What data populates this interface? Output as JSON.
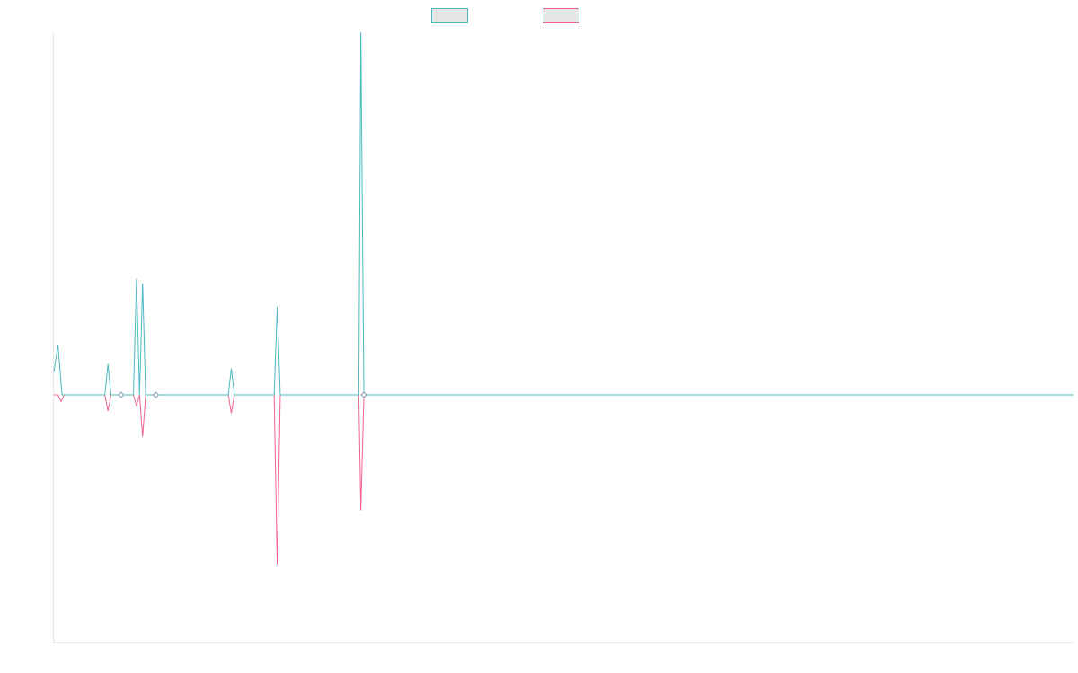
{
  "chart_data": {
    "type": "line",
    "grid": false,
    "legend_position": "top-center",
    "x_axis": {
      "range": [
        0,
        100
      ],
      "tick_labels_shown": false
    },
    "y_axis": {
      "range": [
        -1,
        1
      ],
      "tick_labels_shown": false
    },
    "series": [
      {
        "color": "#4bb8c2",
        "legend_fill": "#e6e6e6",
        "points": [
          [
            0.0,
            0.063
          ],
          [
            0.4,
            0.138
          ],
          [
            0.8,
            0.0
          ],
          [
            5.0,
            0.0
          ],
          [
            5.3,
            0.085
          ],
          [
            5.6,
            0.0
          ],
          [
            6.6,
            0.0
          ],
          [
            7.2,
            0.0
          ],
          [
            7.8,
            0.0
          ],
          [
            8.1,
            0.32
          ],
          [
            8.4,
            0.0
          ],
          [
            8.7,
            0.308
          ],
          [
            9.0,
            0.0
          ],
          [
            10.0,
            0.0
          ],
          [
            17.1,
            0.0
          ],
          [
            17.4,
            0.073
          ],
          [
            17.7,
            0.0
          ],
          [
            21.6,
            0.0
          ],
          [
            21.9,
            0.243
          ],
          [
            22.2,
            0.0
          ],
          [
            29.9,
            0.0
          ],
          [
            30.1,
            1.0
          ],
          [
            30.4,
            0.0
          ],
          [
            100.0,
            0.0
          ]
        ]
      },
      {
        "color": "#f0628c",
        "legend_fill": "#e6e6e6",
        "points": [
          [
            0.0,
            0.0
          ],
          [
            0.4,
            0.0
          ],
          [
            0.7,
            -0.027
          ],
          [
            1.0,
            0.0
          ],
          [
            5.0,
            0.0
          ],
          [
            5.3,
            -0.065
          ],
          [
            5.6,
            0.0
          ],
          [
            6.6,
            0.0
          ],
          [
            7.2,
            0.0
          ],
          [
            7.8,
            0.0
          ],
          [
            8.1,
            -0.044
          ],
          [
            8.4,
            0.0
          ],
          [
            8.7,
            -0.169
          ],
          [
            9.0,
            0.0
          ],
          [
            10.0,
            0.0
          ],
          [
            17.1,
            0.0
          ],
          [
            17.4,
            -0.074
          ],
          [
            17.7,
            0.0
          ],
          [
            21.6,
            0.0
          ],
          [
            21.9,
            -0.688
          ],
          [
            22.2,
            0.0
          ],
          [
            29.9,
            0.0
          ],
          [
            30.1,
            -0.466
          ],
          [
            30.4,
            0.0
          ],
          [
            100.0,
            0.0
          ]
        ]
      }
    ],
    "markers": [
      {
        "x": 6.6,
        "y": 0.0
      },
      {
        "x": 10.0,
        "y": 0.0
      },
      {
        "x": 30.4,
        "y": 0.0
      }
    ]
  }
}
